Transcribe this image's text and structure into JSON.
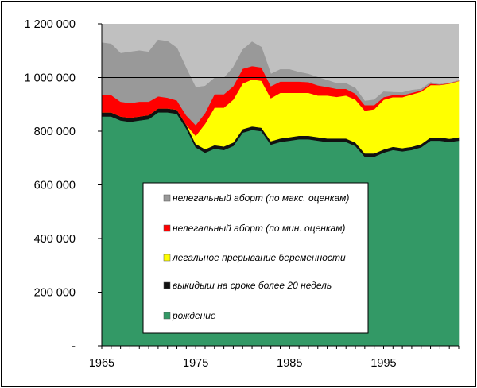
{
  "chart_data": {
    "type": "area",
    "stacked": true,
    "title": "",
    "xlabel": "",
    "ylabel": "",
    "xlim": [
      1965,
      2003
    ],
    "ylim": [
      0,
      1200000
    ],
    "x_ticks": [
      1965,
      1975,
      1985,
      1995
    ],
    "x_tick_labels": [
      "1965",
      "1975",
      "1985",
      "1995"
    ],
    "y_ticks": [
      0,
      200000,
      400000,
      600000,
      800000,
      1000000,
      1200000
    ],
    "y_tick_labels": [
      "-",
      "200 000",
      "400 000",
      "600 000",
      "800 000",
      "1 000 000",
      "1 200 000"
    ],
    "grid": false,
    "legend_position": "center",
    "plot_background": "#c0c0c0",
    "reference_line": 1000000,
    "x": [
      1965,
      1966,
      1967,
      1968,
      1969,
      1970,
      1971,
      1972,
      1973,
      1974,
      1975,
      1976,
      1977,
      1978,
      1979,
      1980,
      1981,
      1982,
      1983,
      1984,
      1985,
      1986,
      1987,
      1988,
      1989,
      1990,
      1991,
      1992,
      1993,
      1994,
      1995,
      1996,
      1997,
      1998,
      1999,
      2000,
      2001,
      2002,
      2003
    ],
    "series": [
      {
        "name": "рождение",
        "color": "#339966",
        "values": [
          855000,
          855000,
          840000,
          835000,
          840000,
          845000,
          870000,
          870000,
          865000,
          810000,
          740000,
          720000,
          735000,
          730000,
          745000,
          795000,
          805000,
          800000,
          750000,
          760000,
          765000,
          770000,
          770000,
          765000,
          760000,
          760000,
          760000,
          745000,
          705000,
          705000,
          720000,
          730000,
          725000,
          730000,
          740000,
          765000,
          765000,
          760000,
          765000
        ]
      },
      {
        "name": "выкидыш на сроке более 20 недель",
        "color": "#111111",
        "values": [
          15000,
          15000,
          15000,
          15000,
          15000,
          15000,
          15000,
          15000,
          15000,
          14000,
          13000,
          13000,
          13000,
          13000,
          13000,
          13000,
          13000,
          13000,
          13000,
          13000,
          13000,
          13000,
          13000,
          13000,
          13000,
          13000,
          13000,
          13000,
          12000,
          12000,
          12000,
          12000,
          12000,
          12000,
          12000,
          12000,
          12000,
          12000,
          12000
        ]
      },
      {
        "name": "легальное прерывание беременности",
        "color": "#ffff00",
        "values": [
          0,
          0,
          0,
          0,
          0,
          0,
          0,
          0,
          0,
          0,
          30000,
          95000,
          140000,
          145000,
          160000,
          170000,
          175000,
          175000,
          160000,
          170000,
          165000,
          160000,
          160000,
          155000,
          160000,
          155000,
          160000,
          160000,
          160000,
          165000,
          185000,
          185000,
          190000,
          195000,
          195000,
          195000,
          195000,
          205000,
          210000
        ]
      },
      {
        "name": "нелегальный аборт (по мин. оценкам)",
        "color": "#ff0000",
        "values": [
          65000,
          65000,
          55000,
          55000,
          55000,
          50000,
          45000,
          40000,
          35000,
          35000,
          40000,
          40000,
          50000,
          50000,
          50000,
          55000,
          50000,
          50000,
          45000,
          42000,
          42000,
          42000,
          40000,
          38000,
          32000,
          30000,
          25000,
          22000,
          20000,
          15000,
          10000,
          8000,
          7000,
          6000,
          5000,
          5000,
          2000,
          2000,
          1000
        ]
      },
      {
        "name": "нелегальный аборт (по макс. оценкам)",
        "color": "#999999",
        "values": [
          195000,
          190000,
          180000,
          190000,
          190000,
          185000,
          210000,
          210000,
          195000,
          175000,
          140000,
          100000,
          60000,
          60000,
          70000,
          70000,
          90000,
          75000,
          45000,
          45000,
          45000,
          35000,
          30000,
          30000,
          25000,
          20000,
          20000,
          20000,
          15000,
          20000,
          20000,
          10000,
          10000,
          10000,
          5000,
          5000,
          0,
          0,
          0
        ]
      }
    ]
  }
}
